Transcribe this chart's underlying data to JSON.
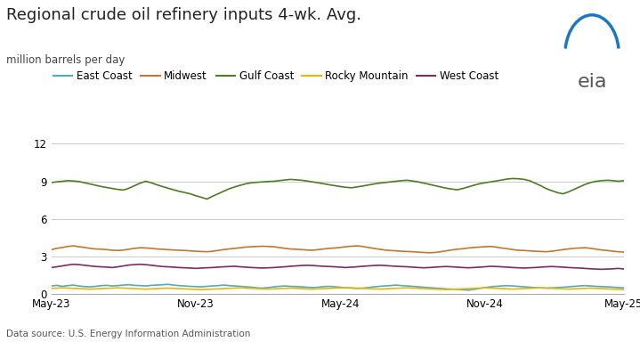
{
  "title": "Regional crude oil refinery inputs 4-wk. Avg.",
  "subtitle": "million barrels per day",
  "source": "Data source: U.S. Energy Information Administration",
  "ylim": [
    0,
    12
  ],
  "yticks": [
    0,
    3,
    6,
    9,
    12
  ],
  "x_labels": [
    "May-23",
    "Nov-23",
    "May-24",
    "Nov-24",
    "May-25"
  ],
  "series_order": [
    "East Coast",
    "Midwest",
    "Gulf Coast",
    "Rocky Mountain",
    "West Coast"
  ],
  "series_colors": {
    "East Coast": "#4bacc6",
    "Midwest": "#c07830",
    "Gulf Coast": "#4f7a28",
    "Rocky Mountain": "#e8b800",
    "West Coast": "#7b2e5e"
  },
  "series_data": {
    "East Coast": [
      0.65,
      0.7,
      0.62,
      0.68,
      0.72,
      0.65,
      0.6,
      0.58,
      0.62,
      0.68,
      0.7,
      0.65,
      0.68,
      0.72,
      0.75,
      0.7,
      0.68,
      0.65,
      0.7,
      0.72,
      0.75,
      0.78,
      0.72,
      0.68,
      0.65,
      0.62,
      0.6,
      0.58,
      0.62,
      0.65,
      0.68,
      0.72,
      0.68,
      0.65,
      0.62,
      0.58,
      0.55,
      0.5,
      0.48,
      0.52,
      0.58,
      0.62,
      0.65,
      0.62,
      0.6,
      0.58,
      0.55,
      0.52,
      0.55,
      0.6,
      0.62,
      0.58,
      0.55,
      0.5,
      0.48,
      0.45,
      0.48,
      0.52,
      0.58,
      0.62,
      0.65,
      0.68,
      0.72,
      0.68,
      0.65,
      0.62,
      0.58,
      0.55,
      0.52,
      0.48,
      0.45,
      0.42,
      0.4,
      0.38,
      0.35,
      0.32,
      0.38,
      0.45,
      0.52,
      0.58,
      0.62,
      0.65,
      0.68,
      0.65,
      0.62,
      0.58,
      0.55,
      0.52,
      0.5,
      0.48,
      0.5,
      0.52,
      0.55,
      0.58,
      0.62,
      0.65,
      0.68,
      0.65,
      0.62,
      0.6,
      0.58,
      0.55,
      0.52,
      0.5
    ],
    "Midwest": [
      3.55,
      3.65,
      3.72,
      3.8,
      3.85,
      3.78,
      3.72,
      3.65,
      3.6,
      3.58,
      3.55,
      3.5,
      3.48,
      3.52,
      3.58,
      3.65,
      3.7,
      3.68,
      3.65,
      3.6,
      3.58,
      3.55,
      3.52,
      3.5,
      3.48,
      3.45,
      3.42,
      3.4,
      3.38,
      3.42,
      3.48,
      3.55,
      3.6,
      3.65,
      3.7,
      3.75,
      3.78,
      3.8,
      3.82,
      3.8,
      3.78,
      3.72,
      3.65,
      3.6,
      3.58,
      3.55,
      3.52,
      3.5,
      3.55,
      3.6,
      3.65,
      3.68,
      3.72,
      3.78,
      3.82,
      3.85,
      3.8,
      3.72,
      3.65,
      3.58,
      3.52,
      3.48,
      3.45,
      3.42,
      3.4,
      3.38,
      3.35,
      3.32,
      3.3,
      3.32,
      3.38,
      3.45,
      3.52,
      3.58,
      3.62,
      3.68,
      3.72,
      3.75,
      3.78,
      3.8,
      3.75,
      3.68,
      3.62,
      3.55,
      3.5,
      3.48,
      3.45,
      3.42,
      3.4,
      3.38,
      3.42,
      3.48,
      3.55,
      3.6,
      3.65,
      3.68,
      3.7,
      3.65,
      3.58,
      3.52,
      3.48,
      3.42,
      3.38,
      3.35
    ],
    "Gulf Coast": [
      8.9,
      8.95,
      9.0,
      9.05,
      9.02,
      8.98,
      8.88,
      8.78,
      8.68,
      8.58,
      8.5,
      8.42,
      8.35,
      8.3,
      8.45,
      8.65,
      8.85,
      9.0,
      8.88,
      8.72,
      8.58,
      8.45,
      8.32,
      8.2,
      8.1,
      8.0,
      7.85,
      7.72,
      7.58,
      7.8,
      8.0,
      8.2,
      8.4,
      8.55,
      8.68,
      8.8,
      8.88,
      8.92,
      8.95,
      8.98,
      9.0,
      9.05,
      9.1,
      9.15,
      9.12,
      9.08,
      9.02,
      8.95,
      8.88,
      8.8,
      8.72,
      8.65,
      8.58,
      8.52,
      8.48,
      8.55,
      8.62,
      8.7,
      8.78,
      8.85,
      8.9,
      8.95,
      9.0,
      9.05,
      9.08,
      9.02,
      8.95,
      8.85,
      8.75,
      8.65,
      8.55,
      8.45,
      8.38,
      8.32,
      8.42,
      8.55,
      8.68,
      8.8,
      8.88,
      8.95,
      9.02,
      9.1,
      9.18,
      9.22,
      9.2,
      9.15,
      9.05,
      8.85,
      8.65,
      8.42,
      8.25,
      8.1,
      8.0,
      8.15,
      8.35,
      8.55,
      8.75,
      8.9,
      9.0,
      9.05,
      9.08,
      9.05,
      9.0,
      9.05
    ],
    "Rocky Mountain": [
      0.45,
      0.48,
      0.5,
      0.48,
      0.46,
      0.44,
      0.42,
      0.4,
      0.42,
      0.44,
      0.46,
      0.48,
      0.5,
      0.48,
      0.46,
      0.44,
      0.42,
      0.4,
      0.42,
      0.44,
      0.46,
      0.48,
      0.46,
      0.44,
      0.42,
      0.4,
      0.38,
      0.36,
      0.38,
      0.4,
      0.42,
      0.44,
      0.46,
      0.48,
      0.5,
      0.48,
      0.46,
      0.44,
      0.42,
      0.4,
      0.42,
      0.44,
      0.46,
      0.48,
      0.46,
      0.44,
      0.42,
      0.4,
      0.42,
      0.44,
      0.46,
      0.48,
      0.5,
      0.52,
      0.5,
      0.48,
      0.46,
      0.44,
      0.42,
      0.4,
      0.42,
      0.44,
      0.46,
      0.48,
      0.5,
      0.48,
      0.46,
      0.44,
      0.42,
      0.4,
      0.38,
      0.36,
      0.38,
      0.4,
      0.42,
      0.44,
      0.46,
      0.48,
      0.5,
      0.48,
      0.46,
      0.44,
      0.42,
      0.4,
      0.42,
      0.44,
      0.46,
      0.48,
      0.5,
      0.48,
      0.46,
      0.44,
      0.42,
      0.4,
      0.42,
      0.44,
      0.46,
      0.48,
      0.46,
      0.44,
      0.42,
      0.4,
      0.38,
      0.36
    ],
    "West Coast": [
      2.12,
      2.18,
      2.25,
      2.32,
      2.38,
      2.35,
      2.3,
      2.25,
      2.2,
      2.18,
      2.15,
      2.12,
      2.18,
      2.25,
      2.32,
      2.35,
      2.38,
      2.35,
      2.3,
      2.25,
      2.2,
      2.18,
      2.15,
      2.12,
      2.1,
      2.08,
      2.05,
      2.08,
      2.1,
      2.12,
      2.15,
      2.18,
      2.2,
      2.22,
      2.18,
      2.15,
      2.12,
      2.1,
      2.08,
      2.1,
      2.12,
      2.15,
      2.18,
      2.22,
      2.25,
      2.28,
      2.3,
      2.28,
      2.25,
      2.22,
      2.2,
      2.18,
      2.15,
      2.12,
      2.15,
      2.18,
      2.22,
      2.25,
      2.28,
      2.3,
      2.28,
      2.25,
      2.22,
      2.2,
      2.18,
      2.15,
      2.12,
      2.1,
      2.12,
      2.15,
      2.18,
      2.2,
      2.18,
      2.15,
      2.12,
      2.1,
      2.12,
      2.15,
      2.18,
      2.22,
      2.2,
      2.18,
      2.15,
      2.12,
      2.1,
      2.08,
      2.1,
      2.12,
      2.15,
      2.18,
      2.2,
      2.18,
      2.15,
      2.12,
      2.1,
      2.08,
      2.05,
      2.02,
      2.0,
      1.98,
      2.0,
      2.02,
      2.05,
      2.0
    ]
  },
  "n_points": 104,
  "x_tick_positions": [
    0,
    26,
    52,
    78,
    103
  ],
  "bg_color": "#ffffff",
  "grid_color": "#cccccc",
  "title_fontsize": 13,
  "subtitle_fontsize": 8.5,
  "legend_fontsize": 8.5,
  "tick_fontsize": 8.5,
  "source_fontsize": 7.5,
  "linewidth": 1.2
}
